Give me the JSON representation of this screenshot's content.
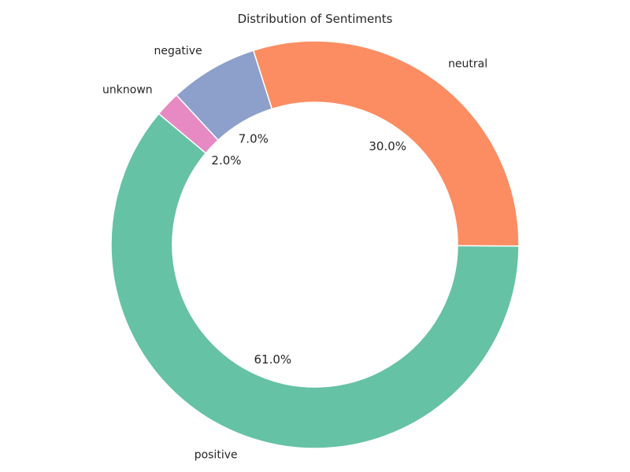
{
  "chart_data": {
    "type": "pie",
    "donut": true,
    "title": "Distribution of Sentiments",
    "start_angle_deg": 140,
    "direction": "counterclockwise",
    "slices": [
      {
        "label": "positive",
        "value": 61.0,
        "pct_text": "61.0%",
        "color": "#66c2a5"
      },
      {
        "label": "neutral",
        "value": 30.0,
        "pct_text": "30.0%",
        "color": "#fc8d62"
      },
      {
        "label": "negative",
        "value": 7.0,
        "pct_text": "7.0%",
        "color": "#8da0cb"
      },
      {
        "label": "unknown",
        "value": 2.0,
        "pct_text": "2.0%",
        "color": "#e78ac3"
      }
    ],
    "legend": "none",
    "grid": false
  }
}
